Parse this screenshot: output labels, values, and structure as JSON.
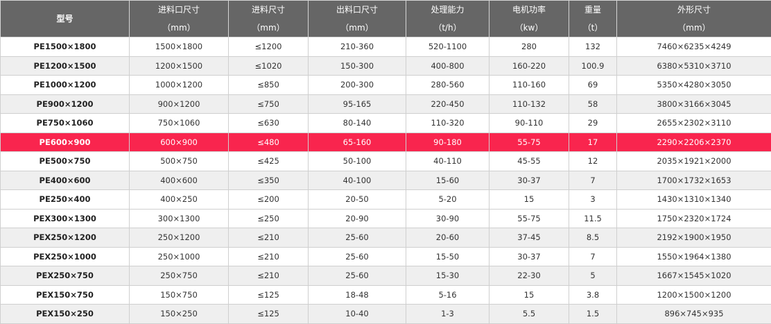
{
  "colors": {
    "header_bg": "#666666",
    "highlight": "#f9254e",
    "stripe": "#efefef",
    "border": "#cfcfcf"
  },
  "headers": [
    {
      "title": "型号",
      "unit": ""
    },
    {
      "title": "进料口尺寸",
      "unit": "（mm）"
    },
    {
      "title": "进料尺寸",
      "unit": "（mm）"
    },
    {
      "title": "出料口尺寸",
      "unit": "（mm）"
    },
    {
      "title": "处理能力",
      "unit": "（t/h）"
    },
    {
      "title": "电机功率",
      "unit": "（kw）"
    },
    {
      "title": "重量",
      "unit": "（t）"
    },
    {
      "title": "外形尺寸",
      "unit": "（mm）"
    }
  ],
  "rows": [
    {
      "style": "",
      "cells": [
        "PE1500×1800",
        "1500×1800",
        "≤1200",
        "210-360",
        "520-1100",
        "280",
        "132",
        "7460×6235×4249"
      ]
    },
    {
      "style": "shaded",
      "cells": [
        "PE1200×1500",
        "1200×1500",
        "≤1020",
        "150-300",
        "400-800",
        "160-220",
        "100.9",
        "6380×5310×3710"
      ]
    },
    {
      "style": "",
      "cells": [
        "PE1000×1200",
        "1000×1200",
        "≤850",
        "200-300",
        "280-560",
        "110-160",
        "69",
        "5350×4280×3050"
      ]
    },
    {
      "style": "shaded",
      "cells": [
        "PE900×1200",
        "900×1200",
        "≤750",
        "95-165",
        "220-450",
        "110-132",
        "58",
        "3800×3166×3045"
      ]
    },
    {
      "style": "",
      "cells": [
        "PE750×1060",
        "750×1060",
        "≤630",
        "80-140",
        "110-320",
        "90-110",
        "29",
        "2655×2302×3110"
      ]
    },
    {
      "style": "highlight",
      "cells": [
        "PE600×900",
        "600×900",
        "≤480",
        "65-160",
        "90-180",
        "55-75",
        "17",
        "2290×2206×2370"
      ]
    },
    {
      "style": "",
      "cells": [
        "PE500×750",
        "500×750",
        "≤425",
        "50-100",
        "40-110",
        "45-55",
        "12",
        "2035×1921×2000"
      ]
    },
    {
      "style": "shaded",
      "cells": [
        "PE400×600",
        "400×600",
        "≤350",
        "40-100",
        "15-60",
        "30-37",
        "7",
        "1700×1732×1653"
      ]
    },
    {
      "style": "",
      "cells": [
        "PE250×400",
        "400×250",
        "≤200",
        "20-50",
        "5-20",
        "15",
        "3",
        "1430×1310×1340"
      ]
    },
    {
      "style": "",
      "cells": [
        "PEX300×1300",
        "300×1300",
        "≤250",
        "20-90",
        "30-90",
        "55-75",
        "11.5",
        "1750×2320×1724"
      ]
    },
    {
      "style": "shaded",
      "cells": [
        "PEX250×1200",
        "250×1200",
        "≤210",
        "25-60",
        "20-60",
        "37-45",
        "8.5",
        "2192×1900×1950"
      ]
    },
    {
      "style": "",
      "cells": [
        "PEX250×1000",
        "250×1000",
        "≤210",
        "25-60",
        "15-50",
        "30-37",
        "7",
        "1550×1964×1380"
      ]
    },
    {
      "style": "shaded",
      "cells": [
        "PEX250×750",
        "250×750",
        "≤210",
        "25-60",
        "15-30",
        "22-30",
        "5",
        "1667×1545×1020"
      ]
    },
    {
      "style": "",
      "cells": [
        "PEX150×750",
        "150×750",
        "≤125",
        "18-48",
        "5-16",
        "15",
        "3.8",
        "1200×1500×1200"
      ]
    },
    {
      "style": "shaded",
      "cells": [
        "PEX150×250",
        "150×250",
        "≤125",
        "10-40",
        "1-3",
        "5.5",
        "1.5",
        "896×745×935"
      ]
    }
  ]
}
